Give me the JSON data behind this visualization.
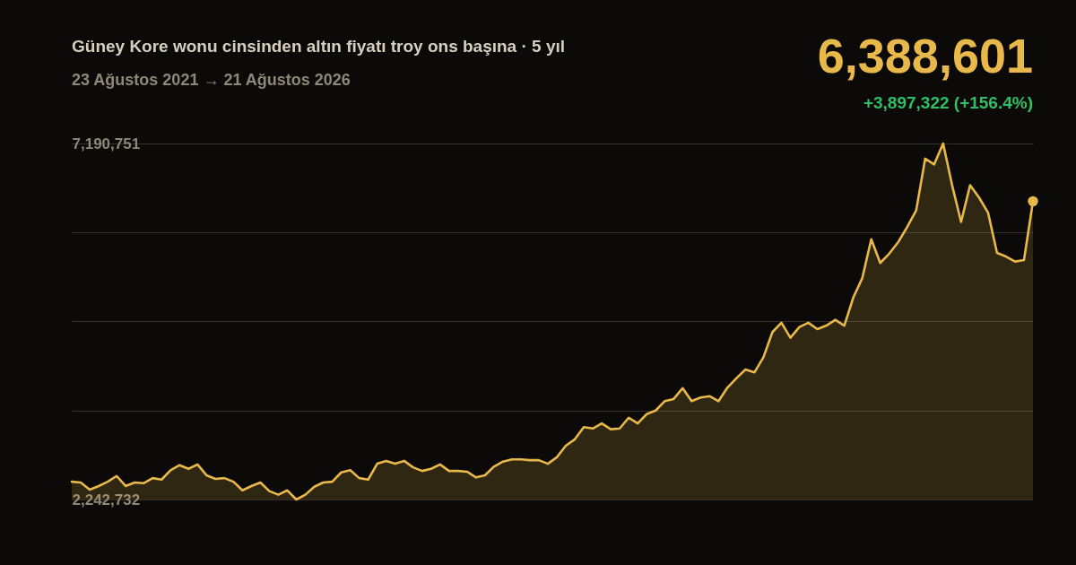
{
  "chart_data": {
    "type": "area",
    "title": "Güney Kore wonu cinsinden altın fiyatı troy ons başına · 5 yıl",
    "subtitle": "23 Ağustos 2021 → 21 Ağustos 2026",
    "annotations": [
      "6,388,601",
      "+3,897,322 (+156.4%)"
    ],
    "categories": [
      null,
      null,
      null,
      null,
      null,
      null,
      null,
      null,
      null,
      null,
      null,
      null,
      null,
      null,
      null,
      null,
      null,
      null,
      null,
      null,
      null,
      null,
      null,
      null,
      null,
      null,
      null,
      null,
      null,
      null,
      null,
      null,
      null,
      null,
      null,
      null,
      null,
      null,
      null,
      null,
      null,
      null,
      null,
      null,
      null,
      null,
      null,
      null,
      null,
      null,
      null,
      null,
      null,
      null,
      null,
      null,
      null,
      null,
      null,
      null,
      null,
      null,
      null,
      null,
      null,
      null,
      null,
      null,
      null,
      null,
      null,
      null,
      null,
      null,
      null,
      null,
      null,
      null,
      null,
      null,
      null,
      null,
      null,
      null,
      null,
      null,
      null,
      null,
      null,
      null,
      null,
      null,
      null,
      null,
      null,
      null,
      null,
      null,
      null,
      null,
      null,
      null,
      null,
      null,
      null,
      null,
      null,
      null
    ],
    "series": [
      {
        "color": "#e8b84a",
        "values": [
          2490000,
          2480000,
          2380000,
          2430000,
          2490000,
          2570000,
          2430000,
          2480000,
          2470000,
          2540000,
          2520000,
          2650000,
          2720000,
          2670000,
          2730000,
          2580000,
          2530000,
          2540000,
          2490000,
          2370000,
          2430000,
          2480000,
          2360000,
          2310000,
          2370000,
          2242732,
          2310000,
          2420000,
          2480000,
          2490000,
          2620000,
          2650000,
          2540000,
          2520000,
          2740000,
          2780000,
          2740000,
          2780000,
          2690000,
          2640000,
          2670000,
          2730000,
          2640000,
          2640000,
          2630000,
          2550000,
          2580000,
          2700000,
          2770000,
          2800000,
          2800000,
          2790000,
          2790000,
          2740000,
          2830000,
          2990000,
          3080000,
          3250000,
          3230000,
          3300000,
          3220000,
          3230000,
          3380000,
          3300000,
          3430000,
          3480000,
          3610000,
          3640000,
          3790000,
          3610000,
          3660000,
          3680000,
          3610000,
          3800000,
          3930000,
          4050000,
          4010000,
          4220000,
          4570000,
          4700000,
          4490000,
          4640000,
          4700000,
          4610000,
          4660000,
          4740000,
          4660000,
          5050000,
          5320000,
          5860000,
          5530000,
          5660000,
          5820000,
          6030000,
          6260000,
          6980000,
          6900000,
          7190751,
          6610000,
          6100000,
          6610000,
          6440000,
          6230000,
          5670000,
          5620000,
          5550000,
          5570000,
          6388601
        ]
      }
    ],
    "ylim": [
      2242732,
      7190751
    ],
    "yticks": [
      {
        "value": 2242732,
        "label": "2,242,732"
      },
      {
        "value": 3479737,
        "label": null
      },
      {
        "value": 4716742,
        "label": null
      },
      {
        "value": 5953746,
        "label": null
      },
      {
        "value": 7190751,
        "label": "7,190,751"
      }
    ],
    "grid": "y",
    "tick_labels": "y"
  }
}
